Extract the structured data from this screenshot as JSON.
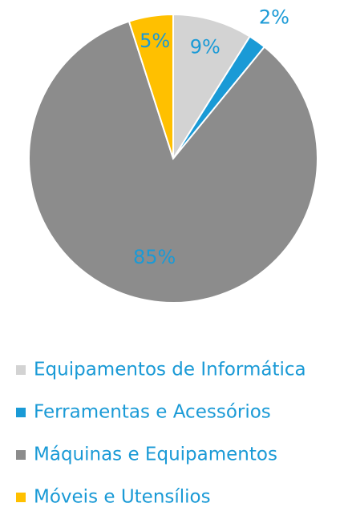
{
  "chart_data": {
    "type": "pie",
    "categories": [
      "Equipamentos de Informática",
      "Ferramentas e Acessórios",
      "Máquinas e Equipamentos",
      "Móveis e Utensílios"
    ],
    "values": [
      9,
      2,
      85,
      5
    ],
    "value_labels": [
      "9%",
      "2%",
      "85%",
      "5%"
    ],
    "colors": [
      "#d3d3d3",
      "#1a9ad6",
      "#8c8c8c",
      "#ffc000"
    ],
    "legend": "bottom"
  }
}
